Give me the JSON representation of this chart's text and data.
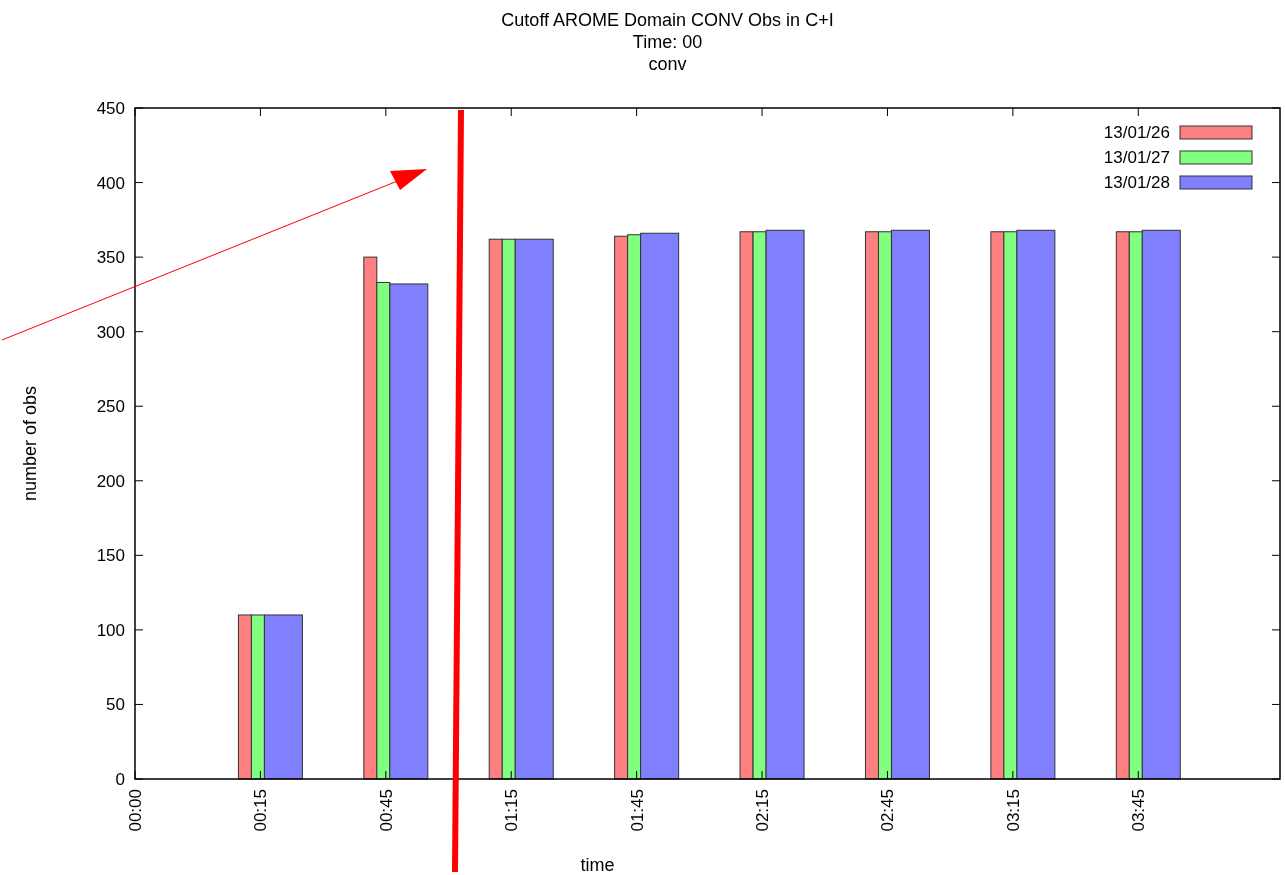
{
  "chart_data": {
    "type": "bar",
    "title": "Cutoff AROME Domain CONV Obs in C+I\nTime: 00\nconv",
    "xlabel": "time",
    "ylabel": "number of obs",
    "categories": [
      "00:00",
      "00:15",
      "00:45",
      "01:15",
      "01:45",
      "02:15",
      "02:45",
      "03:15",
      "03:45"
    ],
    "series": [
      {
        "name": "13/01/26",
        "color": "#ff8080",
        "values": [
          null,
          110,
          350,
          362,
          364,
          367,
          367,
          367,
          367
        ]
      },
      {
        "name": "13/01/27",
        "color": "#80ff80",
        "values": [
          null,
          110,
          333,
          362,
          365,
          367,
          367,
          367,
          367
        ]
      },
      {
        "name": "13/01/28",
        "color": "#8080ff",
        "values": [
          null,
          110,
          332,
          362,
          366,
          368,
          368,
          368,
          368
        ]
      }
    ],
    "ylim": [
      0,
      450
    ],
    "yticks": [
      0,
      50,
      100,
      150,
      200,
      250,
      300,
      350,
      400,
      450
    ],
    "legend": "top right",
    "grid": false
  }
}
